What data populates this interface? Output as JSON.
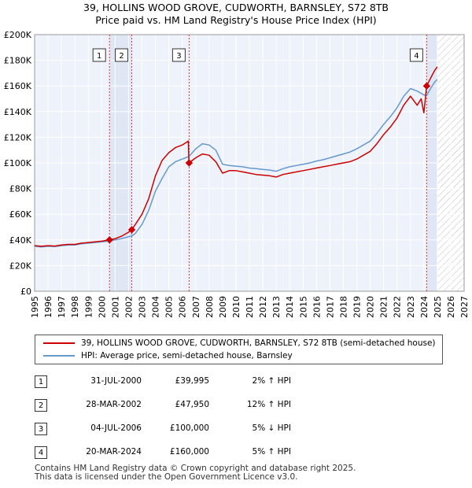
{
  "title_line1": "39, HOLLINS WOOD GROVE, CUDWORTH, BARNSLEY, S72 8TB",
  "title_line2": "Price paid vs. HM Land Registry's House Price Index (HPI)",
  "chart_data": {
    "type": "line",
    "title": "39, HOLLINS WOOD GROVE, CUDWORTH, BARNSLEY, S72 8TB — Price paid vs. HM Land Registry's House Price Index (HPI)",
    "xlim": [
      1995,
      2027
    ],
    "ylim": [
      0,
      200000
    ],
    "x_ticks": [
      "1995",
      "1996",
      "1997",
      "1998",
      "1999",
      "2000",
      "2001",
      "2002",
      "2003",
      "2004",
      "2005",
      "2006",
      "2007",
      "2008",
      "2009",
      "2010",
      "2011",
      "2012",
      "2013",
      "2014",
      "2015",
      "2016",
      "2017",
      "2018",
      "2019",
      "2020",
      "2021",
      "2022",
      "2023",
      "2024",
      "2025",
      "2026",
      "2027"
    ],
    "y_ticks": [
      {
        "value": 0,
        "label": "£0"
      },
      {
        "value": 20000,
        "label": "£20K"
      },
      {
        "value": 40000,
        "label": "£40K"
      },
      {
        "value": 60000,
        "label": "£60K"
      },
      {
        "value": 80000,
        "label": "£80K"
      },
      {
        "value": 100000,
        "label": "£100K"
      },
      {
        "value": 120000,
        "label": "£120K"
      },
      {
        "value": 140000,
        "label": "£140K"
      },
      {
        "value": 160000,
        "label": "£160K"
      },
      {
        "value": 180000,
        "label": "£180K"
      },
      {
        "value": 200000,
        "label": "£200K"
      }
    ],
    "future_from": 2025.0,
    "shade_spans": [
      [
        2000.58,
        2002.24
      ],
      [
        2024.21,
        2025.0
      ]
    ],
    "series": [
      {
        "name": "39, HOLLINS WOOD GROVE, CUDWORTH, BARNSLEY, S72 8TB (semi-detached house)",
        "color": "#cc0000",
        "points": [
          [
            1995.0,
            35500
          ],
          [
            1995.5,
            35000
          ],
          [
            1996.0,
            35500
          ],
          [
            1996.5,
            35200
          ],
          [
            1997.0,
            36000
          ],
          [
            1997.5,
            36500
          ],
          [
            1998.0,
            36500
          ],
          [
            1998.5,
            37500
          ],
          [
            1999.0,
            38000
          ],
          [
            1999.5,
            38500
          ],
          [
            2000.0,
            39000
          ],
          [
            2000.58,
            39995
          ],
          [
            2001.0,
            41000
          ],
          [
            2001.5,
            43000
          ],
          [
            2002.0,
            46000
          ],
          [
            2002.24,
            47950
          ],
          [
            2002.5,
            52000
          ],
          [
            2003.0,
            60000
          ],
          [
            2003.5,
            72000
          ],
          [
            2004.0,
            90000
          ],
          [
            2004.5,
            102000
          ],
          [
            2005.0,
            108000
          ],
          [
            2005.5,
            112000
          ],
          [
            2006.0,
            114000
          ],
          [
            2006.45,
            117000
          ],
          [
            2006.5,
            100000
          ],
          [
            2007.0,
            104000
          ],
          [
            2007.5,
            107000
          ],
          [
            2008.0,
            106000
          ],
          [
            2008.5,
            101000
          ],
          [
            2009.0,
            92000
          ],
          [
            2009.5,
            94000
          ],
          [
            2010.0,
            94000
          ],
          [
            2010.5,
            93000
          ],
          [
            2011.0,
            92000
          ],
          [
            2011.5,
            91000
          ],
          [
            2012.0,
            90500
          ],
          [
            2012.5,
            90000
          ],
          [
            2013.0,
            89000
          ],
          [
            2013.5,
            91000
          ],
          [
            2014.0,
            92000
          ],
          [
            2014.5,
            93000
          ],
          [
            2015.0,
            94000
          ],
          [
            2015.5,
            95000
          ],
          [
            2016.0,
            96000
          ],
          [
            2016.5,
            97000
          ],
          [
            2017.0,
            98000
          ],
          [
            2017.5,
            99000
          ],
          [
            2018.0,
            100000
          ],
          [
            2018.5,
            101000
          ],
          [
            2019.0,
            103000
          ],
          [
            2019.5,
            106000
          ],
          [
            2020.0,
            109000
          ],
          [
            2020.5,
            115000
          ],
          [
            2021.0,
            122000
          ],
          [
            2021.5,
            128000
          ],
          [
            2022.0,
            135000
          ],
          [
            2022.5,
            145000
          ],
          [
            2023.0,
            152000
          ],
          [
            2023.5,
            145000
          ],
          [
            2023.8,
            150000
          ],
          [
            2024.0,
            139000
          ],
          [
            2024.21,
            160000
          ],
          [
            2024.5,
            166000
          ],
          [
            2024.8,
            172000
          ],
          [
            2025.0,
            175000
          ]
        ]
      },
      {
        "name": "HPI: Average price, semi-detached house, Barnsley",
        "color": "#6699cc",
        "points": [
          [
            1995.0,
            35000
          ],
          [
            1995.5,
            34500
          ],
          [
            1996.0,
            35000
          ],
          [
            1996.5,
            34800
          ],
          [
            1997.0,
            35500
          ],
          [
            1997.5,
            36000
          ],
          [
            1998.0,
            36000
          ],
          [
            1998.5,
            37000
          ],
          [
            1999.0,
            37500
          ],
          [
            1999.5,
            38000
          ],
          [
            2000.0,
            38500
          ],
          [
            2000.58,
            39200
          ],
          [
            2001.0,
            40000
          ],
          [
            2001.5,
            41000
          ],
          [
            2002.0,
            42500
          ],
          [
            2002.24,
            43000
          ],
          [
            2002.5,
            45000
          ],
          [
            2003.0,
            52000
          ],
          [
            2003.5,
            63000
          ],
          [
            2004.0,
            78000
          ],
          [
            2004.5,
            88000
          ],
          [
            2005.0,
            97000
          ],
          [
            2005.5,
            101000
          ],
          [
            2006.0,
            103000
          ],
          [
            2006.5,
            105000
          ],
          [
            2007.0,
            111000
          ],
          [
            2007.5,
            115000
          ],
          [
            2008.0,
            114000
          ],
          [
            2008.5,
            110000
          ],
          [
            2009.0,
            99000
          ],
          [
            2009.5,
            98000
          ],
          [
            2010.0,
            97500
          ],
          [
            2010.5,
            97000
          ],
          [
            2011.0,
            96000
          ],
          [
            2011.5,
            95500
          ],
          [
            2012.0,
            95000
          ],
          [
            2012.5,
            94500
          ],
          [
            2013.0,
            93500
          ],
          [
            2013.5,
            95500
          ],
          [
            2014.0,
            97000
          ],
          [
            2014.5,
            98000
          ],
          [
            2015.0,
            99000
          ],
          [
            2015.5,
            100000
          ],
          [
            2016.0,
            101500
          ],
          [
            2016.5,
            102500
          ],
          [
            2017.0,
            104000
          ],
          [
            2017.5,
            105500
          ],
          [
            2018.0,
            107000
          ],
          [
            2018.5,
            108500
          ],
          [
            2019.0,
            111000
          ],
          [
            2019.5,
            114000
          ],
          [
            2020.0,
            117000
          ],
          [
            2020.5,
            123000
          ],
          [
            2021.0,
            130000
          ],
          [
            2021.5,
            136000
          ],
          [
            2022.0,
            143000
          ],
          [
            2022.5,
            152000
          ],
          [
            2023.0,
            158000
          ],
          [
            2023.5,
            156000
          ],
          [
            2024.0,
            153000
          ],
          [
            2024.21,
            152500
          ],
          [
            2024.5,
            158000
          ],
          [
            2024.8,
            163000
          ],
          [
            2025.0,
            165000
          ]
        ]
      }
    ],
    "transactions": [
      {
        "n": "1",
        "x": 2000.58,
        "price": 39995
      },
      {
        "n": "2",
        "x": 2002.24,
        "price": 47950
      },
      {
        "n": "3",
        "x": 2006.51,
        "price": 100000
      },
      {
        "n": "4",
        "x": 2024.21,
        "price": 160000
      }
    ]
  },
  "legend": {
    "red_label": "39, HOLLINS WOOD GROVE, CUDWORTH, BARNSLEY, S72 8TB (semi-detached house)",
    "blue_label": "HPI: Average price, semi-detached house, Barnsley",
    "red_color": "#cc0000",
    "blue_color": "#6699cc"
  },
  "table": [
    {
      "n": "1",
      "date": "31-JUL-2000",
      "price": "£39,995",
      "hpi": "2% ↑ HPI"
    },
    {
      "n": "2",
      "date": "28-MAR-2002",
      "price": "£47,950",
      "hpi": "12% ↑ HPI"
    },
    {
      "n": "3",
      "date": "04-JUL-2006",
      "price": "£100,000",
      "hpi": "5% ↓ HPI"
    },
    {
      "n": "4",
      "date": "20-MAR-2024",
      "price": "£160,000",
      "hpi": "5% ↑ HPI"
    }
  ],
  "footer_line1": "Contains HM Land Registry data © Crown copyright and database right 2025.",
  "footer_line2": "This data is licensed under the Open Government Licence v3.0."
}
